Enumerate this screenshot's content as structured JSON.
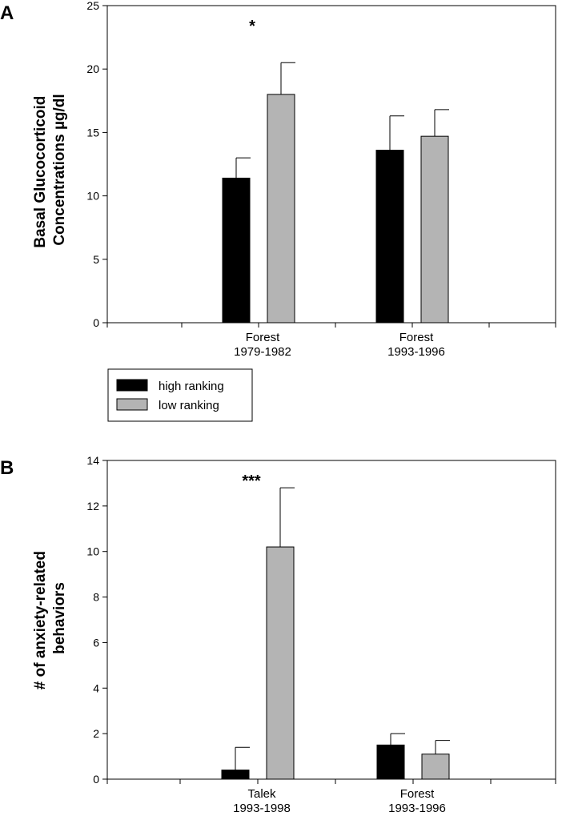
{
  "chart_data": [
    {
      "type": "bar",
      "panel_label": "A",
      "ylabel": [
        "Basal Glucocorticoid",
        "Concentrations µg/dl"
      ],
      "ylim": [
        0,
        25
      ],
      "yticks": [
        0,
        5,
        10,
        15,
        20,
        25
      ],
      "categories": [
        [
          "Forest",
          "1979-1982"
        ],
        [
          "Forest",
          "1993-1996"
        ]
      ],
      "series": [
        {
          "name": "high ranking",
          "color": "#000000",
          "values": [
            11.4,
            13.6
          ],
          "errors": [
            1.6,
            2.7
          ]
        },
        {
          "name": "low ranking",
          "color": "#b4b4b4",
          "values": [
            18.0,
            14.7
          ],
          "errors": [
            2.5,
            2.1
          ]
        }
      ],
      "annotations": [
        {
          "text": "*",
          "category": 0
        }
      ],
      "legend": {
        "placement": "below-plot-left"
      }
    },
    {
      "type": "bar",
      "panel_label": "B",
      "ylabel": [
        "# of anxiety-related",
        "behaviors"
      ],
      "ylim": [
        0,
        14
      ],
      "yticks": [
        0,
        2,
        4,
        6,
        8,
        10,
        12,
        14
      ],
      "categories": [
        [
          "Talek",
          "1993-1998"
        ],
        [
          "Forest",
          "1993-1996"
        ]
      ],
      "series": [
        {
          "name": "high ranking",
          "color": "#000000",
          "values": [
            0.4,
            1.5
          ],
          "errors": [
            1.0,
            0.5
          ]
        },
        {
          "name": "low ranking",
          "color": "#b4b4b4",
          "values": [
            10.2,
            1.1
          ],
          "errors": [
            2.6,
            0.6
          ]
        }
      ],
      "annotations": [
        {
          "text": "***",
          "category": 0
        }
      ]
    }
  ]
}
